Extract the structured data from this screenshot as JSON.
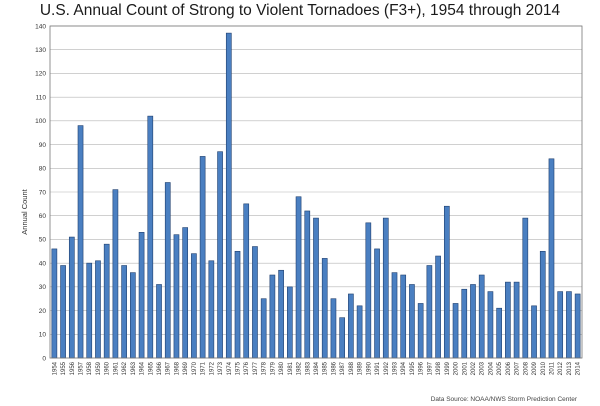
{
  "chart_data": {
    "type": "bar",
    "title": "U.S. Annual Count of Strong to Violent Tornadoes (F3+), 1954 through 2014",
    "ylabel": "Annual Count",
    "xlabel": "",
    "source": "Data Source: NOAA/NWS Storm Prediction Center",
    "ylim": [
      0,
      140
    ],
    "ytick_step": 10,
    "grid": true,
    "legend": "none",
    "bar_color": "#4a7fc1",
    "bar_edge": "#1f3f6e",
    "categories": [
      "1954",
      "1955",
      "1956",
      "1957",
      "1958",
      "1959",
      "1960",
      "1961",
      "1962",
      "1963",
      "1964",
      "1965",
      "1966",
      "1967",
      "1968",
      "1969",
      "1970",
      "1971",
      "1972",
      "1973",
      "1974",
      "1975",
      "1976",
      "1977",
      "1978",
      "1979",
      "1980",
      "1981",
      "1982",
      "1983",
      "1984",
      "1985",
      "1986",
      "1987",
      "1988",
      "1989",
      "1990",
      "1991",
      "1992",
      "1993",
      "1994",
      "1995",
      "1996",
      "1997",
      "1998",
      "1999",
      "2000",
      "2001",
      "2002",
      "2003",
      "2004",
      "2005",
      "2006",
      "2007",
      "2008",
      "2009",
      "2010",
      "2011",
      "2012",
      "2013",
      "2014"
    ],
    "values": [
      46,
      39,
      51,
      98,
      40,
      41,
      48,
      71,
      39,
      36,
      53,
      102,
      31,
      74,
      52,
      55,
      44,
      85,
      41,
      87,
      137,
      45,
      65,
      47,
      25,
      35,
      37,
      30,
      68,
      62,
      59,
      42,
      25,
      17,
      27,
      22,
      57,
      46,
      59,
      36,
      35,
      31,
      23,
      39,
      43,
      64,
      23,
      29,
      31,
      35,
      28,
      21,
      32,
      32,
      59,
      22,
      45,
      84,
      28,
      28,
      27
    ]
  }
}
